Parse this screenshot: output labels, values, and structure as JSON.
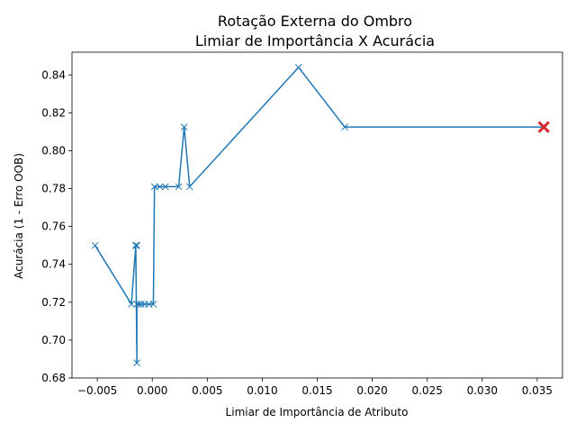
{
  "chart_data": {
    "type": "line",
    "title_line1": "Rotação Externa do Ombro",
    "title_line2": "Limiar de Importância X Acurácia",
    "xlabel": "Limiar de Importância de Atributo",
    "ylabel": "Acurácia (1 - Erro OOB)",
    "xlim": [
      -0.0073,
      0.0373
    ],
    "ylim": [
      0.68,
      0.852
    ],
    "xticks": [
      -0.005,
      0.0,
      0.005,
      0.01,
      0.015,
      0.02,
      0.025,
      0.03,
      0.035
    ],
    "xtick_labels": [
      "−0.005",
      "0.000",
      "0.005",
      "0.010",
      "0.015",
      "0.020",
      "0.025",
      "0.030",
      "0.035"
    ],
    "yticks": [
      0.68,
      0.7,
      0.72,
      0.74,
      0.76,
      0.78,
      0.8,
      0.82,
      0.84
    ],
    "ytick_labels": [
      "0.68",
      "0.70",
      "0.72",
      "0.74",
      "0.76",
      "0.78",
      "0.80",
      "0.82",
      "0.84"
    ],
    "grid": false,
    "series": [
      {
        "marker": "x",
        "color": "#1f77b4",
        "points": [
          [
            -0.0052,
            0.75
          ],
          [
            -0.0019,
            0.719
          ],
          [
            -0.0015,
            0.75
          ],
          [
            -0.0014,
            0.75
          ],
          [
            -0.0015,
            0.75
          ],
          [
            -0.0014,
            0.688
          ],
          [
            -0.0014,
            0.719
          ],
          [
            -0.0012,
            0.719
          ],
          [
            -0.001,
            0.719
          ],
          [
            -0.0007,
            0.719
          ],
          [
            -0.0003,
            0.719
          ],
          [
            0.0001,
            0.719
          ],
          [
            0.0002,
            0.781
          ],
          [
            0.0007,
            0.781
          ],
          [
            0.0012,
            0.781
          ],
          [
            0.0024,
            0.781
          ],
          [
            0.0029,
            0.8125
          ],
          [
            0.0034,
            0.781
          ],
          [
            0.0133,
            0.844
          ],
          [
            0.0175,
            0.8125
          ],
          [
            0.0356,
            0.8125
          ]
        ]
      }
    ],
    "highlight": {
      "x": 0.0356,
      "y": 0.8125,
      "marker": "X",
      "color": "#d62728"
    }
  }
}
